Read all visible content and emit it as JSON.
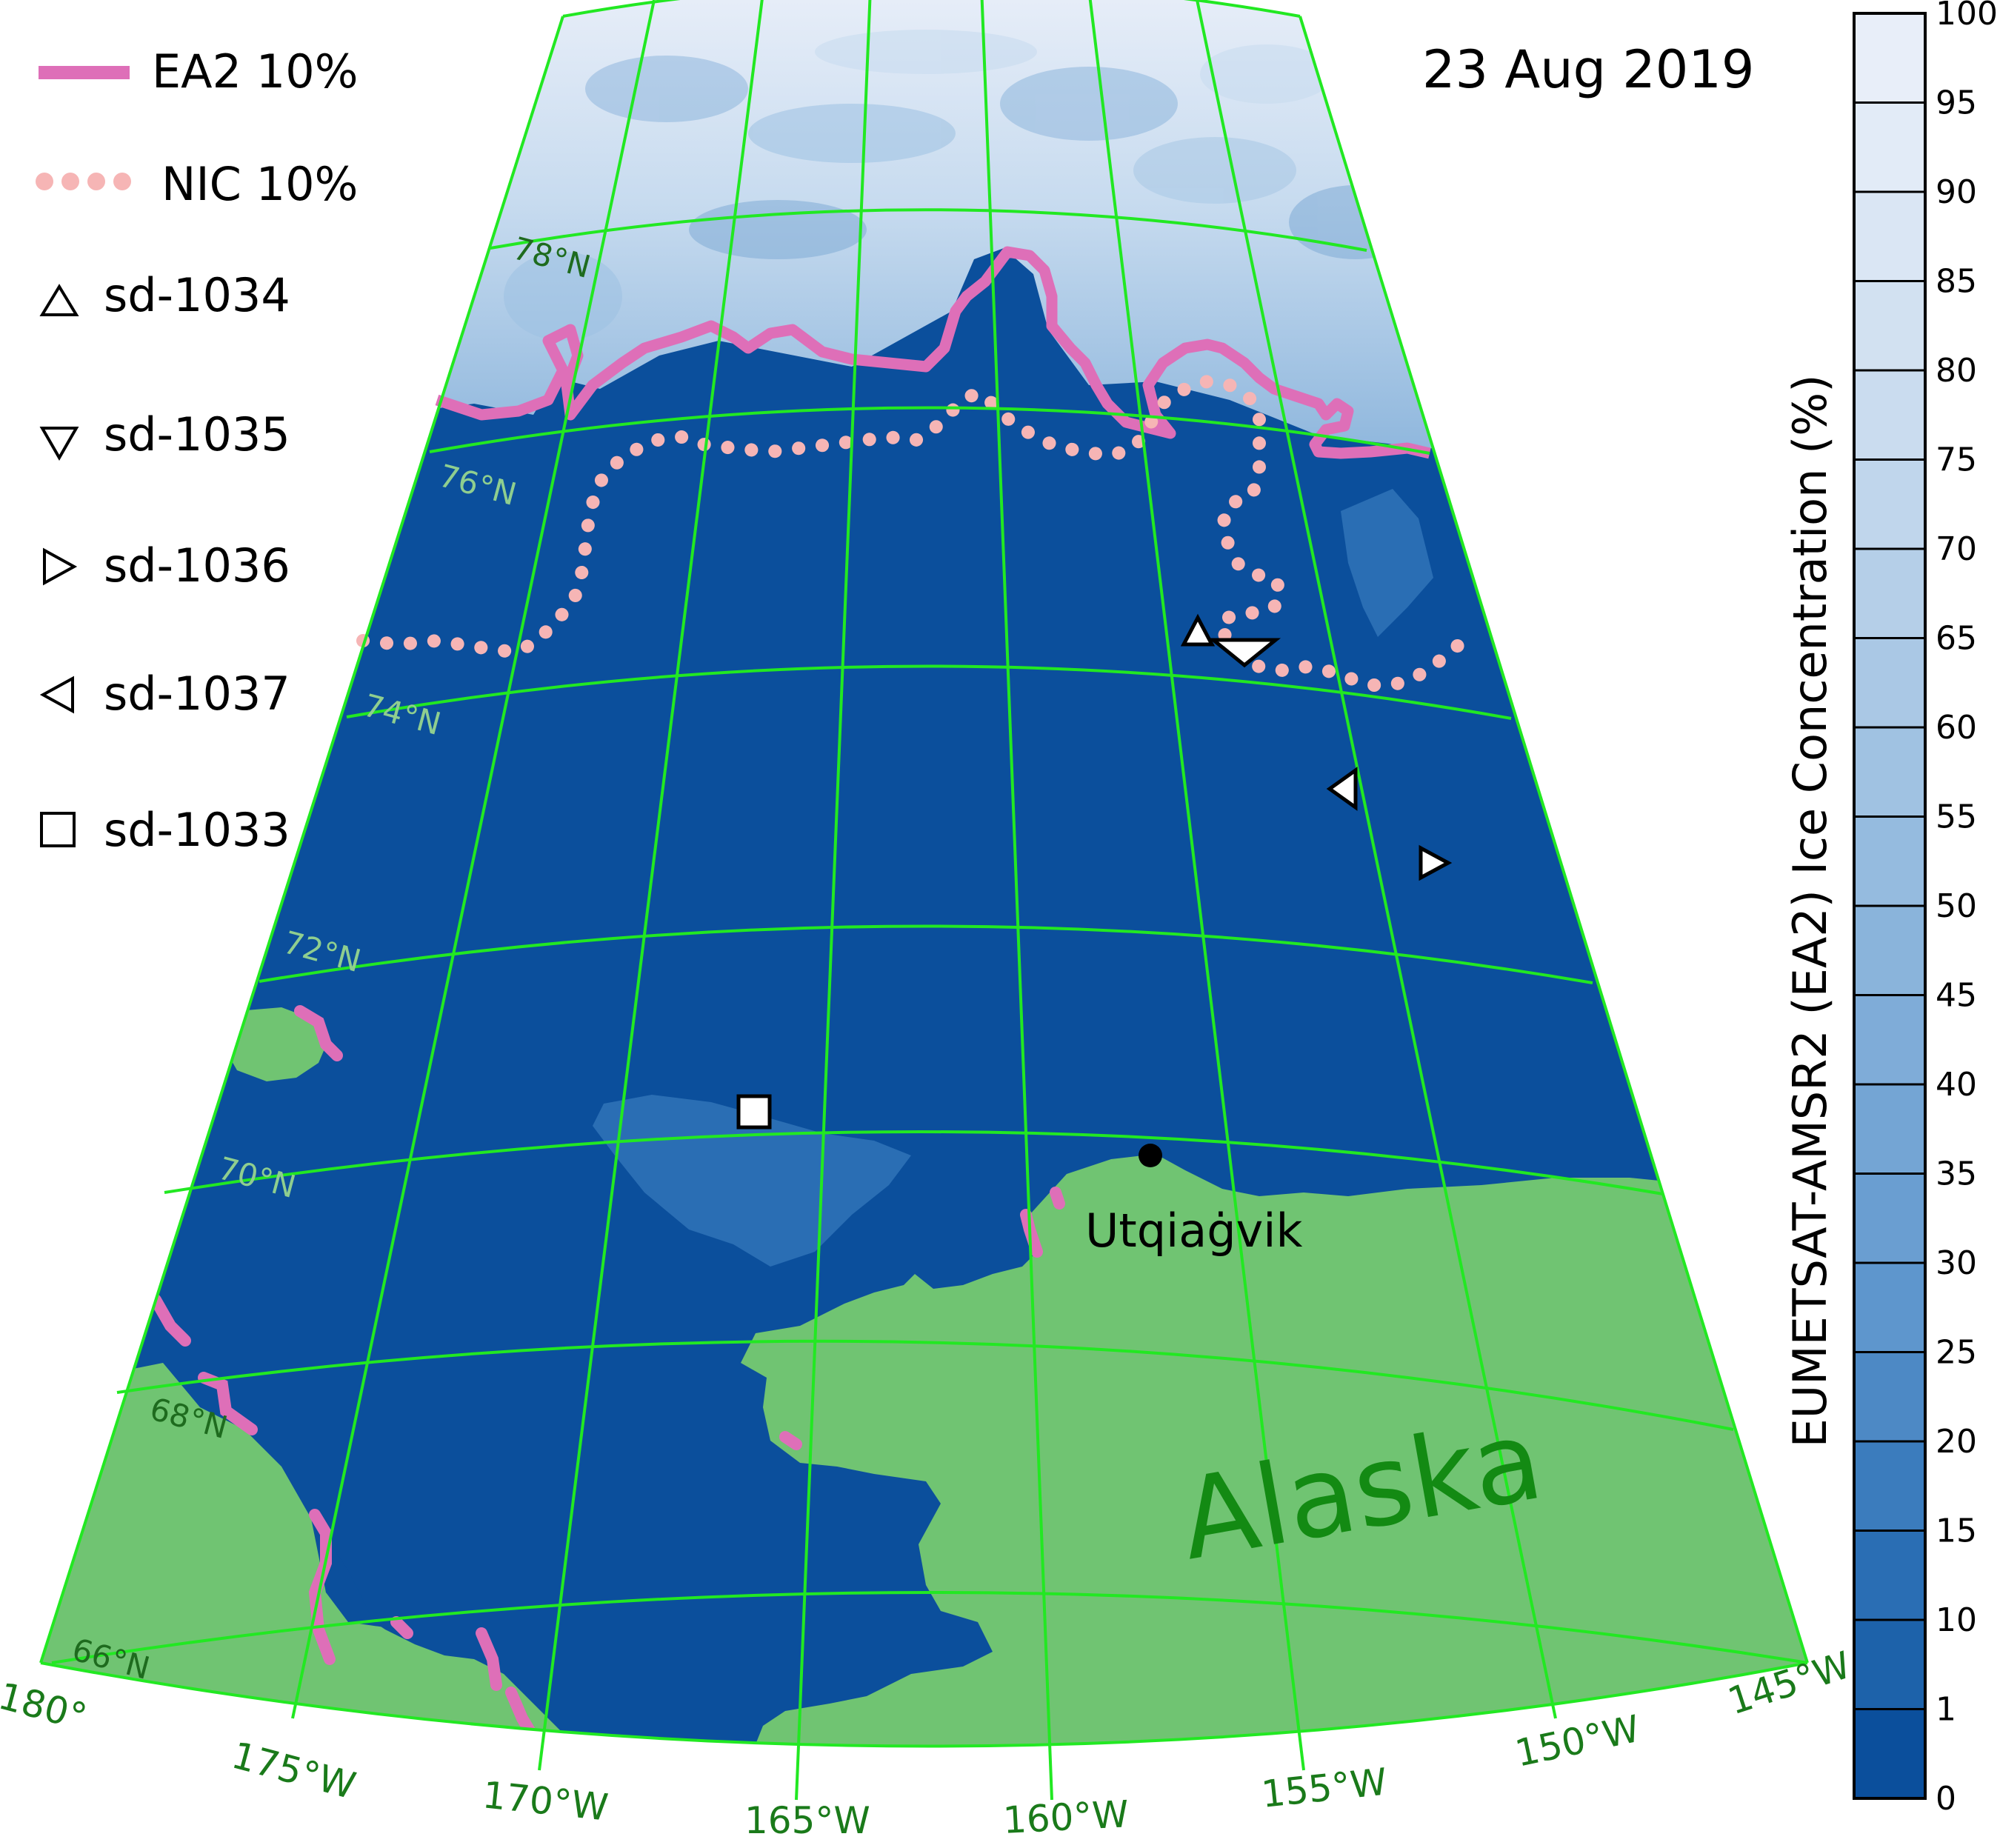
{
  "date": "23 Aug 2019",
  "legend": {
    "items": [
      {
        "label": "EA2 10%",
        "symbol": "line"
      },
      {
        "label": "NIC 10%",
        "symbol": "dotted-line"
      },
      {
        "label": "sd-1034",
        "symbol": "triangle-up"
      },
      {
        "label": "sd-1035",
        "symbol": "triangle-down"
      },
      {
        "label": "sd-1036",
        "symbol": "triangle-right"
      },
      {
        "label": "sd-1037",
        "symbol": "triangle-left"
      },
      {
        "label": "sd-1033",
        "symbol": "square"
      }
    ]
  },
  "colorbar": {
    "title": "EUMETSAT-AMSR2 (EA2)  Ice Concentration (%)",
    "ticks": [
      "100",
      "95",
      "90",
      "85",
      "80",
      "75",
      "70",
      "65",
      "60",
      "55",
      "50",
      "45",
      "40",
      "35",
      "30",
      "25",
      "20",
      "15",
      "10",
      "1",
      "0"
    ],
    "colors": [
      "#e8eef9",
      "#e2ebf7",
      "#dae6f4",
      "#d2e1f1",
      "#cadcef",
      "#c0d6ec",
      "#b5cfe8",
      "#aac8e5",
      "#a0c2e2",
      "#95bbdf",
      "#8ab4db",
      "#7facd8",
      "#74a5d4",
      "#6a9ed1",
      "#5e96cd",
      "#4d89c5",
      "#3b7cbd",
      "#2a6eb4",
      "#1d62aa",
      "#0b4f9c"
    ]
  },
  "places": {
    "region": "Alaska",
    "town": "Utqiaġvik"
  },
  "lat_labels": [
    "78°N",
    "76°N",
    "74°N",
    "72°N",
    "70°N",
    "68°N",
    "66°N"
  ],
  "lon_labels": [
    "180°",
    "175°W",
    "170°W",
    "165°W",
    "160°W",
    "155°W",
    "150°W",
    "145°W"
  ],
  "colors": {
    "ocean": "#0b4f9c",
    "land": "#70c472",
    "graticule": "#22e822",
    "ea2_contour": "#de6fb8",
    "nic_contour": "#f6b5b5",
    "town_label": "#000000",
    "region_label": "#138a13"
  }
}
